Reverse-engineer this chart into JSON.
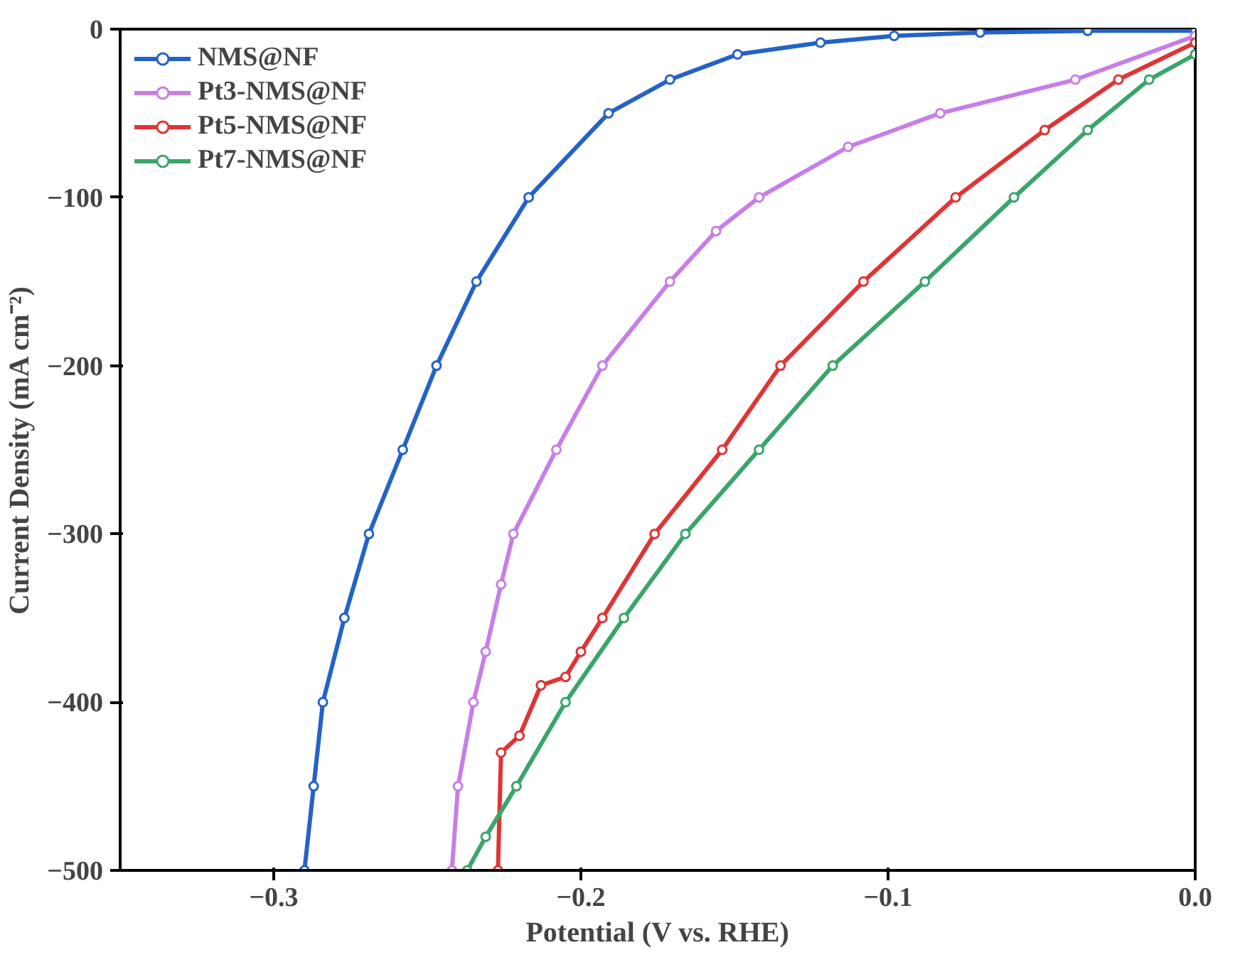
{
  "chart_data": {
    "type": "line",
    "xlabel": "Potential (V vs. RHE)",
    "ylabel": "Current Density (mA cm⁻²)",
    "xlim": [
      -0.35,
      0.0
    ],
    "ylim": [
      -500,
      0
    ],
    "xticks": [
      {
        "value": -0.3,
        "label": "−0.3"
      },
      {
        "value": -0.2,
        "label": "−0.2"
      },
      {
        "value": -0.1,
        "label": "−0.1"
      },
      {
        "value": 0.0,
        "label": "0.0"
      }
    ],
    "yticks": [
      {
        "value": -500,
        "label": "−500"
      },
      {
        "value": -400,
        "label": "−400"
      },
      {
        "value": -300,
        "label": "−300"
      },
      {
        "value": -200,
        "label": "−200"
      },
      {
        "value": -100,
        "label": "−100"
      },
      {
        "value": 0,
        "label": "0"
      }
    ],
    "grid": false,
    "legend": "top left",
    "marker": "circle",
    "line_style": "solid",
    "series": [
      {
        "name": "NMS@NF",
        "color": "#2462c8",
        "x": [
          -0.29,
          -0.287,
          -0.284,
          -0.277,
          -0.269,
          -0.258,
          -0.247,
          -0.234,
          -0.217,
          -0.191,
          -0.171,
          -0.149,
          -0.122,
          -0.098,
          -0.07,
          -0.035,
          0.0
        ],
        "values": [
          -500,
          -450,
          -400,
          -350,
          -300,
          -250,
          -200,
          -150,
          -100,
          -50,
          -30,
          -15,
          -8,
          -4,
          -2,
          -1,
          -1
        ]
      },
      {
        "name": "Pt3-NMS@NF",
        "color": "#c77ee8",
        "x": [
          -0.242,
          -0.24,
          -0.235,
          -0.231,
          -0.226,
          -0.222,
          -0.208,
          -0.193,
          -0.171,
          -0.156,
          -0.142,
          -0.113,
          -0.083,
          -0.039,
          0.0
        ],
        "values": [
          -500,
          -450,
          -400,
          -370,
          -330,
          -300,
          -250,
          -200,
          -150,
          -120,
          -100,
          -70,
          -50,
          -30,
          -4
        ]
      },
      {
        "name": "Pt5-NMS@NF",
        "color": "#e03434",
        "x": [
          -0.227,
          -0.226,
          -0.22,
          -0.213,
          -0.205,
          -0.2,
          -0.193,
          -0.176,
          -0.154,
          -0.135,
          -0.108,
          -0.078,
          -0.049,
          -0.025,
          0.0
        ],
        "values": [
          -500,
          -430,
          -420,
          -390,
          -385,
          -370,
          -350,
          -300,
          -250,
          -200,
          -150,
          -100,
          -60,
          -30,
          -8
        ]
      },
      {
        "name": "Pt7-NMS@NF",
        "color": "#3aa56a",
        "x": [
          -0.237,
          -0.231,
          -0.221,
          -0.205,
          -0.186,
          -0.166,
          -0.142,
          -0.118,
          -0.088,
          -0.059,
          -0.035,
          -0.015,
          0.0
        ],
        "values": [
          -500,
          -480,
          -450,
          -400,
          -350,
          -300,
          -250,
          -200,
          -150,
          -100,
          -60,
          -30,
          -15
        ]
      }
    ]
  }
}
